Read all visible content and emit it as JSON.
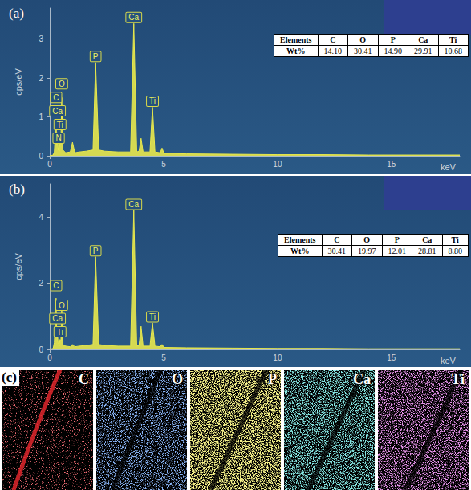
{
  "chart_data": [
    {
      "type": "line",
      "title": "(a)",
      "xlabel": "keV",
      "ylabel": "cps/eV",
      "x": [
        0,
        0.15,
        0.2,
        0.277,
        0.31,
        0.34,
        0.37,
        0.39,
        0.42,
        0.45,
        0.49,
        0.525,
        0.58,
        0.7,
        0.9,
        1.0,
        1.1,
        1.3,
        1.6,
        1.9,
        2.013,
        2.15,
        2.4,
        3.0,
        3.55,
        3.69,
        3.82,
        3.92,
        4.01,
        4.1,
        4.4,
        4.51,
        4.62,
        4.85,
        4.93,
        5.02,
        6,
        8,
        10,
        12,
        14,
        18
      ],
      "values": [
        0,
        0.02,
        0.1,
        0.9,
        0.3,
        0.6,
        0.15,
        0.2,
        0.12,
        0.35,
        0.3,
        1.5,
        0.15,
        0.08,
        0.1,
        0.35,
        0.08,
        0.1,
        0.12,
        0.15,
        2.4,
        0.15,
        0.12,
        0.1,
        0.1,
        3.4,
        0.1,
        0.12,
        0.45,
        0.1,
        0.1,
        1.25,
        0.1,
        0.08,
        0.2,
        0.06,
        0.05,
        0.04,
        0.03,
        0.03,
        0.02,
        0.02
      ],
      "color": "#e8e84c",
      "xlim": [
        0,
        18
      ],
      "xticks": [
        0,
        5,
        10,
        15
      ],
      "ylim": [
        0,
        3.8
      ],
      "yticks": [
        0,
        1,
        2,
        3
      ],
      "grid": false,
      "annotations": [
        {
          "text": "P",
          "x": 2.013,
          "y": 2.4
        },
        {
          "text": "Ca",
          "x": 3.69,
          "y": 3.4
        },
        {
          "text": "Ti",
          "x": 4.51,
          "y": 1.25
        },
        {
          "text": "O",
          "x": 0.525,
          "y": 1.7
        },
        {
          "text": "C",
          "x": 0.277,
          "y": 1.35
        },
        {
          "text": "Ca",
          "x": 0.34,
          "y": 1.0
        },
        {
          "text": "Ti",
          "x": 0.45,
          "y": 0.65
        },
        {
          "text": "N",
          "x": 0.39,
          "y": 0.3
        }
      ],
      "table": {
        "header": [
          "Elements",
          "C",
          "O",
          "P",
          "Ca",
          "Ti"
        ],
        "rows": [
          [
            "Wt%",
            "14.10",
            "30.41",
            "14.90",
            "29.91",
            "10.68"
          ]
        ]
      }
    },
    {
      "type": "line",
      "title": "(b)",
      "xlabel": "keV",
      "ylabel": "cps/eV",
      "x": [
        0,
        0.15,
        0.2,
        0.277,
        0.31,
        0.34,
        0.37,
        0.39,
        0.42,
        0.45,
        0.49,
        0.525,
        0.58,
        0.7,
        0.9,
        1.0,
        1.1,
        1.3,
        1.6,
        1.9,
        2.013,
        2.15,
        2.4,
        3.0,
        3.55,
        3.69,
        3.82,
        3.92,
        4.01,
        4.1,
        4.4,
        4.51,
        4.62,
        4.85,
        4.93,
        5.02,
        6,
        8,
        10,
        12,
        14,
        18
      ],
      "values": [
        0,
        0.03,
        0.2,
        1.55,
        0.4,
        0.5,
        0.15,
        0.1,
        0.1,
        0.3,
        0.25,
        1.2,
        0.15,
        0.1,
        0.08,
        0.15,
        0.08,
        0.1,
        0.12,
        0.15,
        2.8,
        0.15,
        0.12,
        0.1,
        0.1,
        4.2,
        0.1,
        0.12,
        0.7,
        0.1,
        0.1,
        0.8,
        0.1,
        0.08,
        0.15,
        0.06,
        0.05,
        0.04,
        0.03,
        0.03,
        0.02,
        0.02
      ],
      "color": "#e8e84c",
      "xlim": [
        0,
        18
      ],
      "xticks": [
        0,
        5,
        10,
        15
      ],
      "ylim": [
        0,
        5
      ],
      "yticks": [
        0,
        2,
        4
      ],
      "grid": false,
      "annotations": [
        {
          "text": "P",
          "x": 2.013,
          "y": 2.8
        },
        {
          "text": "Ca",
          "x": 3.69,
          "y": 4.2
        },
        {
          "text": "Ti",
          "x": 4.51,
          "y": 0.8
        },
        {
          "text": "C",
          "x": 0.277,
          "y": 1.75
        },
        {
          "text": "O",
          "x": 0.525,
          "y": 1.15
        },
        {
          "text": "Ca",
          "x": 0.34,
          "y": 0.75
        },
        {
          "text": "Ti",
          "x": 0.45,
          "y": 0.35
        }
      ],
      "table": {
        "header": [
          "Elements",
          "C",
          "O",
          "P",
          "Ca",
          "Ti"
        ],
        "rows": [
          [
            "Wt%",
            "30.41",
            "19.97",
            "12.01",
            "28.81",
            "8.80"
          ]
        ]
      }
    }
  ],
  "maps": {
    "label": "(c)",
    "panels": [
      {
        "text": "C",
        "color": "#e0262c"
      },
      {
        "text": "O",
        "color": "#3f73e6"
      },
      {
        "text": "P",
        "color": "#e8e040"
      },
      {
        "text": "Ca",
        "color": "#3cc8c0"
      },
      {
        "text": "Ti",
        "color": "#c84ad0"
      }
    ]
  }
}
